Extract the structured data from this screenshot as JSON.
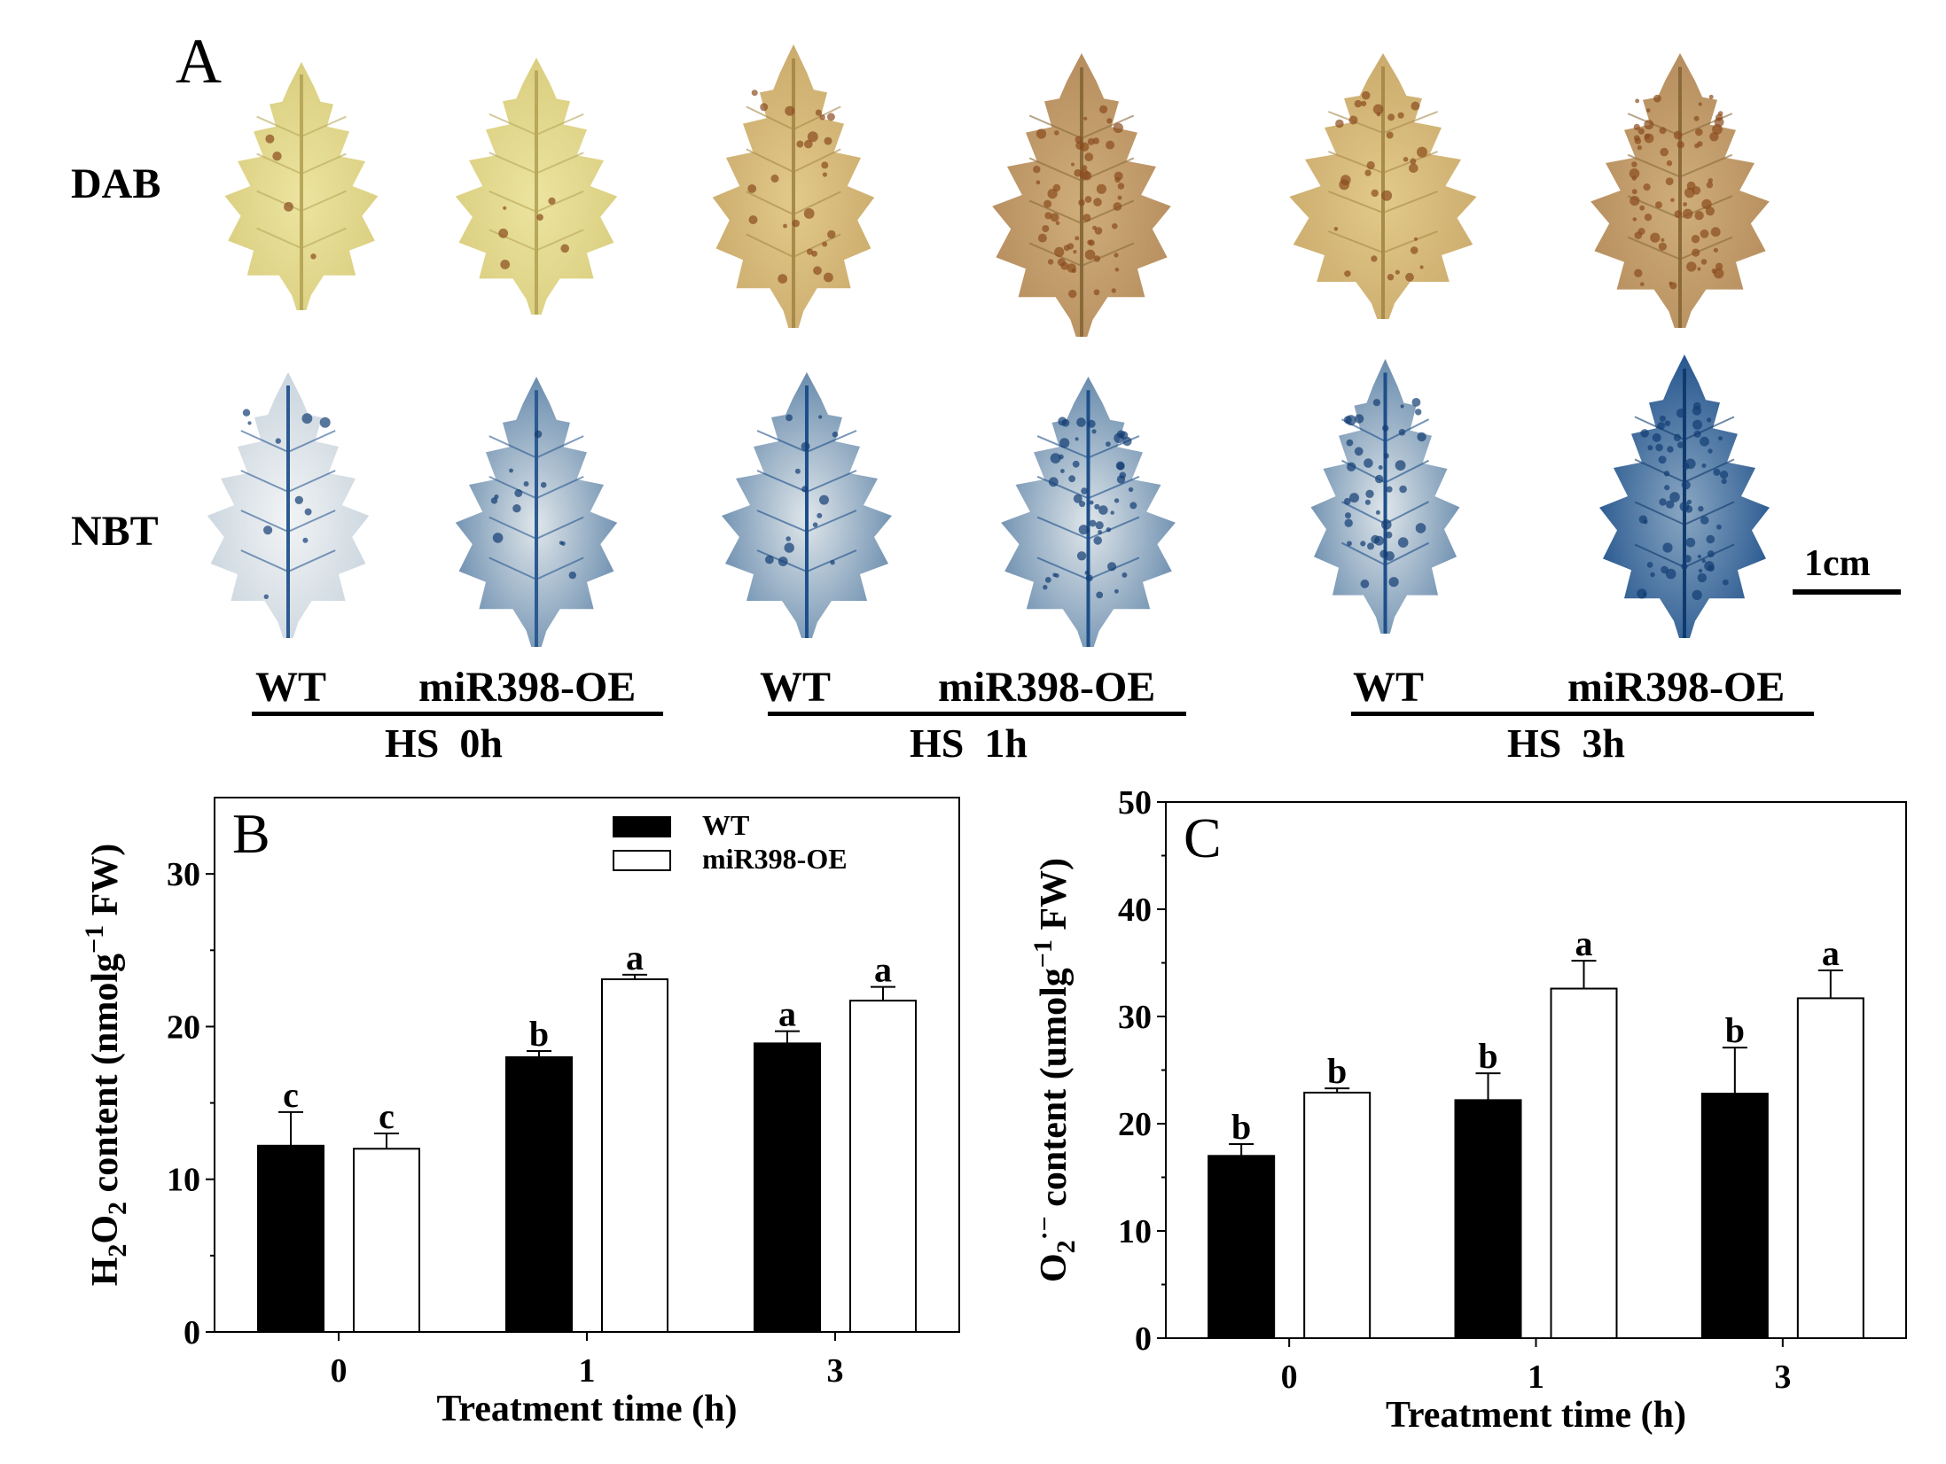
{
  "panel_a": {
    "label": "A",
    "row_labels": [
      "DAB",
      "NBT"
    ],
    "scale_bar": "1cm",
    "columns": [
      {
        "wt": "WT",
        "oe": "miR398-OE",
        "condition": "HS  0h"
      },
      {
        "wt": "WT",
        "oe": "miR398-OE",
        "condition": "HS  1h"
      },
      {
        "wt": "WT",
        "oe": "miR398-OE",
        "condition": "HS  3h"
      }
    ],
    "colors": {
      "dab_light": "#e6dc8e",
      "dab_dark": "#c9a96a",
      "dab_stain": "#8a4b1e",
      "nbt_light": "#e9eef2",
      "nbt_dark": "#1d4f8a",
      "nbt_stain": "#123d73"
    }
  },
  "chart_data": [
    {
      "type": "bar",
      "panel": "B",
      "categories": [
        "0",
        "1",
        "3"
      ],
      "series": [
        {
          "name": "WT",
          "color": "#000000",
          "values": [
            12.2,
            18.0,
            18.9
          ],
          "errors": [
            2.2,
            0.4,
            0.8
          ],
          "letters": [
            "c",
            "b",
            "a"
          ]
        },
        {
          "name": "miR398-OE",
          "color": "#ffffff",
          "values": [
            12.0,
            23.1,
            21.7
          ],
          "errors": [
            1.0,
            0.3,
            0.9
          ],
          "letters": [
            "c",
            "a",
            "a"
          ]
        }
      ],
      "xlabel": "Treatment time (h)",
      "ylabel": "H2O2 content (nmolg−1 FW)",
      "ylim": [
        0,
        35
      ],
      "yticks": [
        0,
        10,
        20,
        30
      ],
      "legend": "top-right"
    },
    {
      "type": "bar",
      "panel": "C",
      "categories": [
        "0",
        "1",
        "3"
      ],
      "series": [
        {
          "name": "WT",
          "color": "#000000",
          "values": [
            17.0,
            22.2,
            22.8
          ],
          "errors": [
            1.1,
            2.5,
            4.3
          ],
          "letters": [
            "b",
            "b",
            "b"
          ]
        },
        {
          "name": "miR398-OE",
          "color": "#ffffff",
          "values": [
            22.9,
            32.6,
            31.7
          ],
          "errors": [
            0.4,
            2.6,
            2.6
          ],
          "letters": [
            "b",
            "a",
            "a"
          ]
        }
      ],
      "xlabel": "Treatment time (h)",
      "ylabel": "O2·− content (umolg−1 FW)",
      "ylim": [
        0,
        50
      ],
      "yticks": [
        0,
        10,
        20,
        30,
        40,
        50
      ]
    }
  ]
}
